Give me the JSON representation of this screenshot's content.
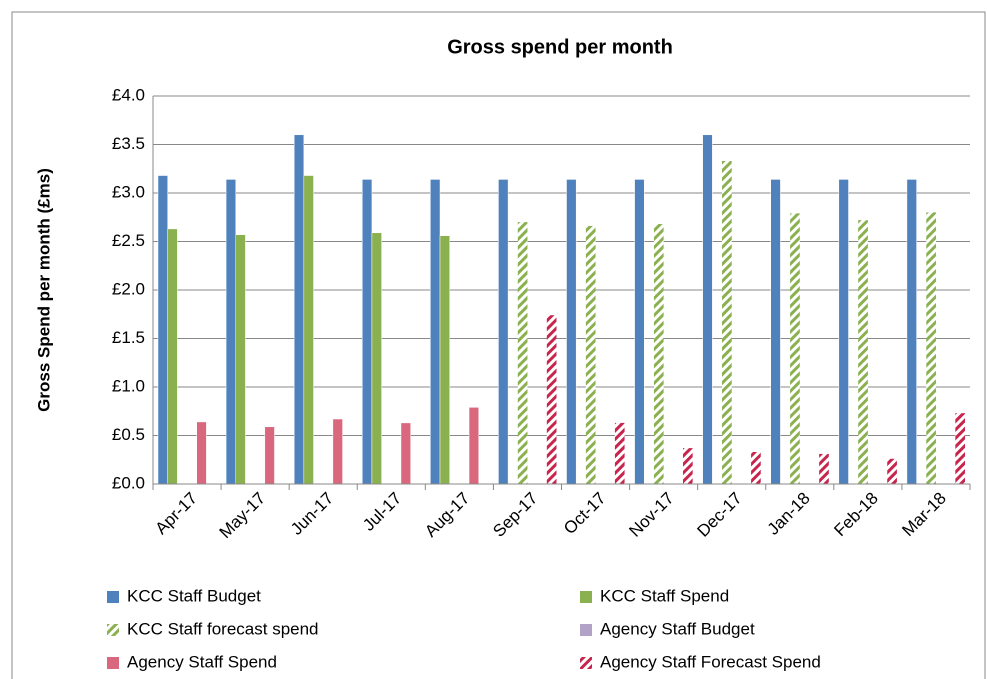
{
  "chart_data": {
    "type": "bar",
    "title": "Gross spend per month",
    "ylabel": "Gross Spend per month (£ms)",
    "categories": [
      "Apr-17",
      "May-17",
      "Jun-17",
      "Jul-17",
      "Aug-17",
      "Sep-17",
      "Oct-17",
      "Nov-17",
      "Dec-17",
      "Jan-18",
      "Feb-18",
      "Mar-18"
    ],
    "series": [
      {
        "name": "KCC Staff Budget",
        "color": "#4f81bd",
        "values": [
          3.18,
          3.14,
          3.6,
          3.14,
          3.14,
          3.14,
          3.14,
          3.14,
          3.6,
          3.14,
          3.14,
          3.14
        ]
      },
      {
        "name": "KCC Staff Spend",
        "color": "#8ab04f",
        "values": [
          2.63,
          2.57,
          3.18,
          2.59,
          2.56,
          null,
          null,
          null,
          null,
          null,
          null,
          null
        ]
      },
      {
        "name": "KCC Staff forecast spend",
        "color": "#8ab04f",
        "hatched": true,
        "values": [
          null,
          null,
          null,
          null,
          null,
          2.7,
          2.66,
          2.68,
          3.33,
          2.79,
          2.72,
          2.8
        ]
      },
      {
        "name": "Agency Staff Budget",
        "color": "#b3a2c7",
        "values": [
          null,
          null,
          null,
          null,
          null,
          null,
          null,
          null,
          null,
          null,
          null,
          null
        ]
      },
      {
        "name": "Agency Staff Spend",
        "color": "#d9677d",
        "values": [
          0.64,
          0.59,
          0.67,
          0.63,
          0.79,
          null,
          null,
          null,
          null,
          null,
          null,
          null
        ]
      },
      {
        "name": "Agency Staff Forecast Spend",
        "color": "#c8254d",
        "hatched": true,
        "values": [
          null,
          null,
          null,
          null,
          null,
          1.74,
          0.63,
          0.37,
          0.33,
          0.31,
          0.26,
          0.73
        ]
      }
    ],
    "ylim": [
      0,
      4
    ],
    "yticks": [
      {
        "value": 0,
        "label": "£0.0"
      },
      {
        "value": 0.5,
        "label": "£0.5"
      },
      {
        "value": 1,
        "label": "£1.0"
      },
      {
        "value": 1.5,
        "label": "£1.5"
      },
      {
        "value": 2,
        "label": "£2.0"
      },
      {
        "value": 2.5,
        "label": "£2.5"
      },
      {
        "value": 3,
        "label": "£3.0"
      },
      {
        "value": 3.5,
        "label": "£3.5"
      },
      {
        "value": 4,
        "label": "£4.0"
      }
    ],
    "grid": true
  }
}
